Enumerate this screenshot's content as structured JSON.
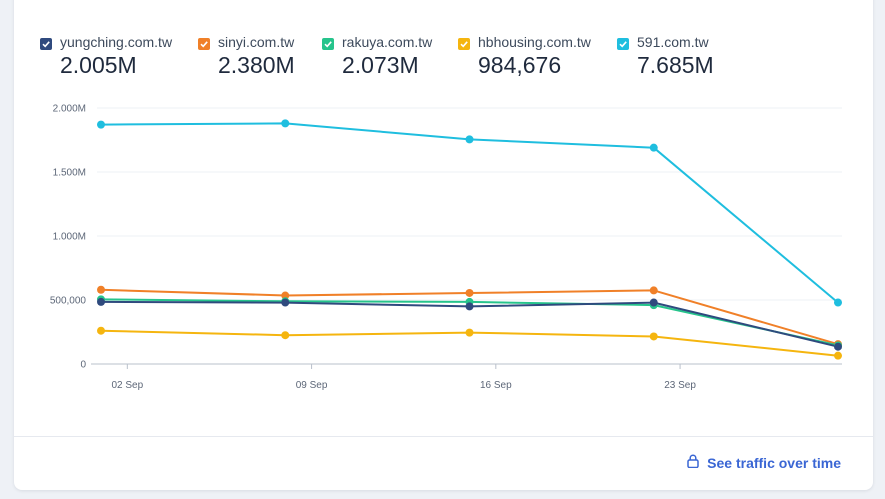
{
  "legend": [
    {
      "name": "yungching.com.tw",
      "value": "2.005M",
      "color": "#2f4a7e"
    },
    {
      "name": "sinyi.com.tw",
      "value": "2.380M",
      "color": "#f08028"
    },
    {
      "name": "rakuya.com.tw",
      "value": "2.073M",
      "color": "#26c48c"
    },
    {
      "name": "hbhousing.com.tw",
      "value": "984,676",
      "color": "#f5b50f"
    },
    {
      "name": "591.com.tw",
      "value": "7.685M",
      "color": "#1fbedf"
    }
  ],
  "footer": {
    "link_label": "See traffic over time",
    "icon": "lock-icon"
  },
  "chart_data": {
    "type": "line",
    "title": "",
    "xlabel": "",
    "ylabel": "",
    "x": [
      "2023-09-01",
      "2023-09-08",
      "2023-09-15",
      "2023-09-22",
      "2023-09-29"
    ],
    "x_ticks": [
      "02 Sep",
      "09 Sep",
      "16 Sep",
      "23 Sep"
    ],
    "y_ticks": [
      "0",
      "500,000",
      "1.000M",
      "1.500M",
      "2.000M"
    ],
    "ylim": [
      0,
      2000000
    ],
    "series": [
      {
        "name": "591.com.tw",
        "color": "#1fbedf",
        "values": [
          1870000,
          1880000,
          1755000,
          1690000,
          480000
        ]
      },
      {
        "name": "sinyi.com.tw",
        "color": "#f08028",
        "values": [
          580000,
          535000,
          555000,
          575000,
          155000
        ]
      },
      {
        "name": "rakuya.com.tw",
        "color": "#26c48c",
        "values": [
          505000,
          490000,
          485000,
          460000,
          145000
        ]
      },
      {
        "name": "yungching.com.tw",
        "color": "#2f4a7e",
        "values": [
          485000,
          480000,
          450000,
          480000,
          135000
        ]
      },
      {
        "name": "hbhousing.com.tw",
        "color": "#f5b50f",
        "values": [
          260000,
          225000,
          245000,
          215000,
          65000
        ]
      }
    ]
  }
}
